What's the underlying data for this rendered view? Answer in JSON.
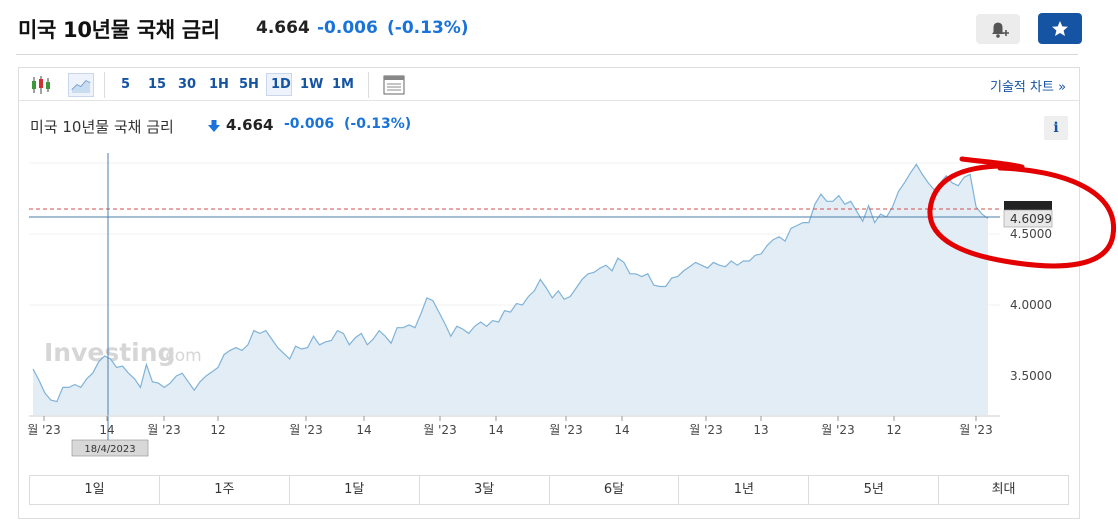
{
  "header": {
    "title": "미국 10년물 국채 금리",
    "price": "4.664",
    "change": "-0.006",
    "change_pct": "(-0.13%)"
  },
  "toolbar": {
    "timeframes": [
      "5",
      "15",
      "30",
      "1H",
      "5H",
      "1D",
      "1W",
      "1M"
    ],
    "active_timeframe": "1D",
    "tech_chart_link": "기술적 차트 »"
  },
  "chart_header": {
    "title": "미국 10년물 국채 금리",
    "price": "4.664",
    "change": "-0.006",
    "change_pct": "(-0.13%)",
    "info_label": "i"
  },
  "chart": {
    "watermark_main": "Investing",
    "watermark_suffix": ".com",
    "last_label": "4.6099",
    "crosshair_date": "18/4/2023",
    "line_color": "#7fb3d8",
    "fill_color": "#e3edf6",
    "annotation_color": "#e30000"
  },
  "chart_data": {
    "type": "area",
    "title": "미국 10년물 국채 금리",
    "y_ticks": [
      "3.5000",
      "4.0000",
      "4.5000"
    ],
    "x_tick_labels": [
      "월 '23",
      "14",
      "월 '23",
      "12",
      "월 '23",
      "14",
      "월 '23",
      "14",
      "월 '23",
      "14",
      "월 '23",
      "13",
      "월 '23",
      "12",
      "월 '23"
    ],
    "ylim": [
      3.22,
      5.05
    ],
    "y": [
      3.55,
      3.47,
      3.38,
      3.33,
      3.32,
      3.42,
      3.42,
      3.44,
      3.42,
      3.48,
      3.52,
      3.6,
      3.64,
      3.62,
      3.56,
      3.57,
      3.52,
      3.48,
      3.42,
      3.58,
      3.46,
      3.45,
      3.42,
      3.45,
      3.5,
      3.52,
      3.46,
      3.4,
      3.46,
      3.5,
      3.53,
      3.56,
      3.65,
      3.68,
      3.7,
      3.68,
      3.72,
      3.82,
      3.8,
      3.82,
      3.76,
      3.7,
      3.66,
      3.62,
      3.71,
      3.69,
      3.7,
      3.78,
      3.72,
      3.74,
      3.75,
      3.82,
      3.8,
      3.72,
      3.77,
      3.8,
      3.72,
      3.76,
      3.82,
      3.78,
      3.73,
      3.84,
      3.84,
      3.86,
      3.84,
      3.94,
      4.05,
      4.03,
      3.95,
      3.87,
      3.78,
      3.85,
      3.83,
      3.8,
      3.85,
      3.88,
      3.85,
      3.89,
      3.88,
      3.96,
      3.95,
      4.01,
      4.0,
      4.06,
      4.1,
      4.18,
      4.12,
      4.05,
      4.1,
      4.04,
      4.06,
      4.12,
      4.18,
      4.22,
      4.23,
      4.26,
      4.28,
      4.24,
      4.33,
      4.3,
      4.22,
      4.22,
      4.2,
      4.22,
      4.14,
      4.13,
      4.13,
      4.19,
      4.2,
      4.24,
      4.27,
      4.3,
      4.28,
      4.26,
      4.3,
      4.28,
      4.27,
      4.31,
      4.28,
      4.31,
      4.31,
      4.35,
      4.36,
      4.42,
      4.46,
      4.48,
      4.45,
      4.54,
      4.56,
      4.58,
      4.58,
      4.71,
      4.78,
      4.73,
      4.73,
      4.77,
      4.71,
      4.73,
      4.66,
      4.59,
      4.7,
      4.58,
      4.64,
      4.62,
      4.69,
      4.8,
      4.86,
      4.93,
      4.99,
      4.92,
      4.86,
      4.81,
      4.86,
      4.91,
      4.86,
      4.84,
      4.9,
      4.92,
      4.69,
      4.64,
      4.61
    ]
  }
}
